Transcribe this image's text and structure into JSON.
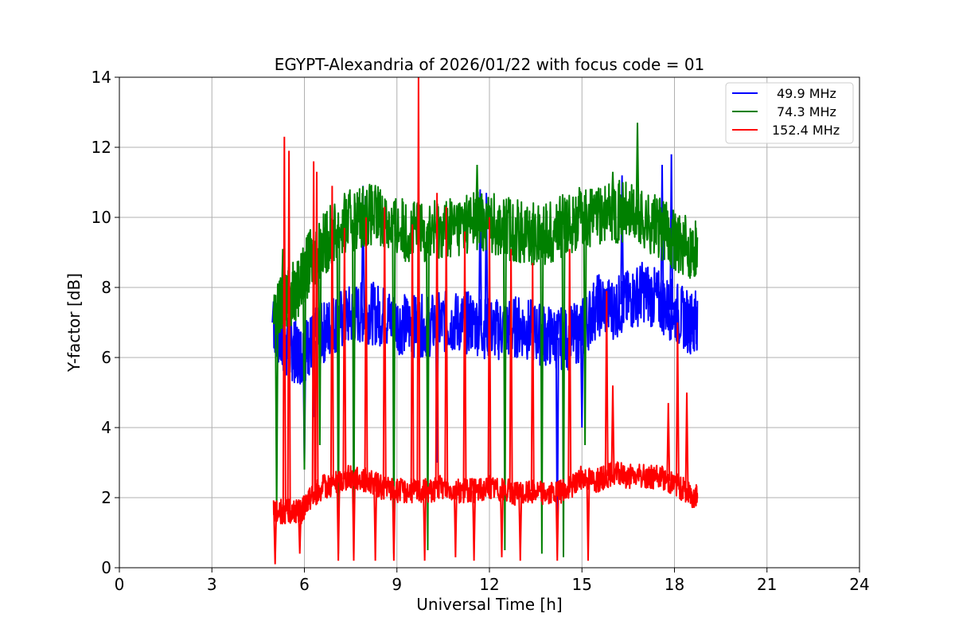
{
  "chart_data": {
    "type": "line",
    "title": "EGYPT-Alexandria of 2026/01/22 with focus code = 01",
    "xlabel": "Universal Time [h]",
    "ylabel": "Y-factor [dB]",
    "xlim": [
      0,
      24
    ],
    "ylim": [
      0,
      14
    ],
    "xticks": [
      0,
      3,
      6,
      9,
      12,
      15,
      18,
      21,
      24
    ],
    "yticks": [
      0,
      2,
      4,
      6,
      8,
      10,
      12,
      14
    ],
    "grid": true,
    "legend_position": "top-right",
    "series": [
      {
        "name": "49.9 MHz",
        "color": "#0000ff",
        "x": [
          5.0,
          5.3,
          5.6,
          5.9,
          6.2,
          6.6,
          7.0,
          7.5,
          8.0,
          8.5,
          9.0,
          9.5,
          10.0,
          10.5,
          11.0,
          11.5,
          12.0,
          12.5,
          13.0,
          13.5,
          14.0,
          14.5,
          15.0,
          15.5,
          16.0,
          16.5,
          17.0,
          17.5,
          18.0,
          18.5,
          18.75
        ],
        "values": [
          7.0,
          6.4,
          6.2,
          6.1,
          6.4,
          6.7,
          7.0,
          7.2,
          7.3,
          7.2,
          7.0,
          6.9,
          6.9,
          7.0,
          7.0,
          7.0,
          6.8,
          6.8,
          6.9,
          6.7,
          6.6,
          6.5,
          6.8,
          7.5,
          7.4,
          7.6,
          7.9,
          7.6,
          7.3,
          7.0,
          7.1
        ],
        "spikes": [
          [
            5.0,
            7.6
          ],
          [
            6.0,
            3.0
          ],
          [
            6.3,
            4.3
          ],
          [
            7.9,
            10.9
          ],
          [
            10.3,
            3.0
          ],
          [
            11.7,
            10.8
          ],
          [
            11.9,
            10.7
          ],
          [
            14.2,
            0.6
          ],
          [
            15.0,
            4.0
          ],
          [
            16.3,
            11.2
          ],
          [
            17.6,
            11.5
          ],
          [
            17.9,
            11.8
          ],
          [
            18.5,
            6.6
          ]
        ]
      },
      {
        "name": "74.3 MHz",
        "color": "#008000",
        "x": [
          5.0,
          5.3,
          5.6,
          5.9,
          6.2,
          6.6,
          7.0,
          7.5,
          8.0,
          8.5,
          9.0,
          9.5,
          10.0,
          10.5,
          11.0,
          11.5,
          12.0,
          12.5,
          13.0,
          13.5,
          14.0,
          14.5,
          15.0,
          15.5,
          16.0,
          16.5,
          17.0,
          17.5,
          18.0,
          18.5,
          18.75
        ],
        "values": [
          7.0,
          7.6,
          7.8,
          8.2,
          8.8,
          9.2,
          9.6,
          9.9,
          10.1,
          10.0,
          9.7,
          9.6,
          9.6,
          9.7,
          9.8,
          9.9,
          9.9,
          9.7,
          9.6,
          9.5,
          9.6,
          9.8,
          10.0,
          10.0,
          10.2,
          10.1,
          9.9,
          9.7,
          9.4,
          9.1,
          9.2
        ],
        "spikes": [
          [
            5.1,
            1.6
          ],
          [
            5.3,
            9.1
          ],
          [
            6.0,
            2.8
          ],
          [
            6.5,
            3.5
          ],
          [
            7.1,
            0.4
          ],
          [
            7.6,
            0.3
          ],
          [
            8.9,
            0.4
          ],
          [
            10.0,
            0.5
          ],
          [
            11.6,
            11.5
          ],
          [
            12.5,
            0.5
          ],
          [
            13.7,
            0.4
          ],
          [
            14.4,
            0.3
          ],
          [
            15.1,
            3.5
          ],
          [
            16.0,
            11.3
          ],
          [
            16.8,
            12.7
          ]
        ]
      },
      {
        "name": "152.4 MHz",
        "color": "#ff0000",
        "x": [
          5.0,
          5.3,
          5.6,
          5.9,
          6.2,
          6.6,
          7.0,
          7.5,
          8.0,
          8.5,
          9.0,
          9.5,
          10.0,
          10.5,
          11.0,
          11.5,
          12.0,
          12.5,
          13.0,
          13.5,
          14.0,
          14.5,
          15.0,
          15.5,
          16.0,
          16.5,
          17.0,
          17.5,
          18.0,
          18.5,
          18.75
        ],
        "values": [
          1.6,
          1.6,
          1.6,
          1.6,
          2.0,
          2.3,
          2.4,
          2.6,
          2.5,
          2.3,
          2.2,
          2.2,
          2.2,
          2.3,
          2.2,
          2.2,
          2.3,
          2.2,
          2.1,
          2.2,
          2.1,
          2.2,
          2.6,
          2.5,
          2.7,
          2.6,
          2.6,
          2.6,
          2.4,
          2.1,
          2.0
        ],
        "spikes": [
          [
            5.05,
            0.1
          ],
          [
            5.35,
            12.3
          ],
          [
            5.5,
            11.9
          ],
          [
            5.85,
            0.4
          ],
          [
            6.3,
            11.6
          ],
          [
            6.4,
            11.3
          ],
          [
            6.9,
            10.9
          ],
          [
            7.1,
            0.2
          ],
          [
            7.3,
            9.7
          ],
          [
            7.6,
            0.2
          ],
          [
            8.0,
            10.0
          ],
          [
            8.3,
            0.2
          ],
          [
            8.6,
            10.3
          ],
          [
            8.9,
            0.2
          ],
          [
            9.5,
            9.8
          ],
          [
            9.7,
            14.0
          ],
          [
            9.9,
            0.2
          ],
          [
            10.3,
            10.7
          ],
          [
            10.6,
            10.3
          ],
          [
            10.9,
            0.3
          ],
          [
            11.2,
            9.6
          ],
          [
            11.5,
            0.2
          ],
          [
            12.0,
            10.0
          ],
          [
            12.4,
            0.3
          ],
          [
            12.7,
            9.1
          ],
          [
            13.0,
            0.2
          ],
          [
            13.4,
            8.7
          ],
          [
            14.2,
            0.2
          ],
          [
            14.6,
            9.1
          ],
          [
            15.2,
            0.2
          ],
          [
            15.8,
            7.9
          ],
          [
            16.0,
            5.2
          ],
          [
            17.8,
            4.7
          ],
          [
            18.1,
            7.0
          ],
          [
            18.4,
            5.0
          ]
        ]
      }
    ]
  }
}
